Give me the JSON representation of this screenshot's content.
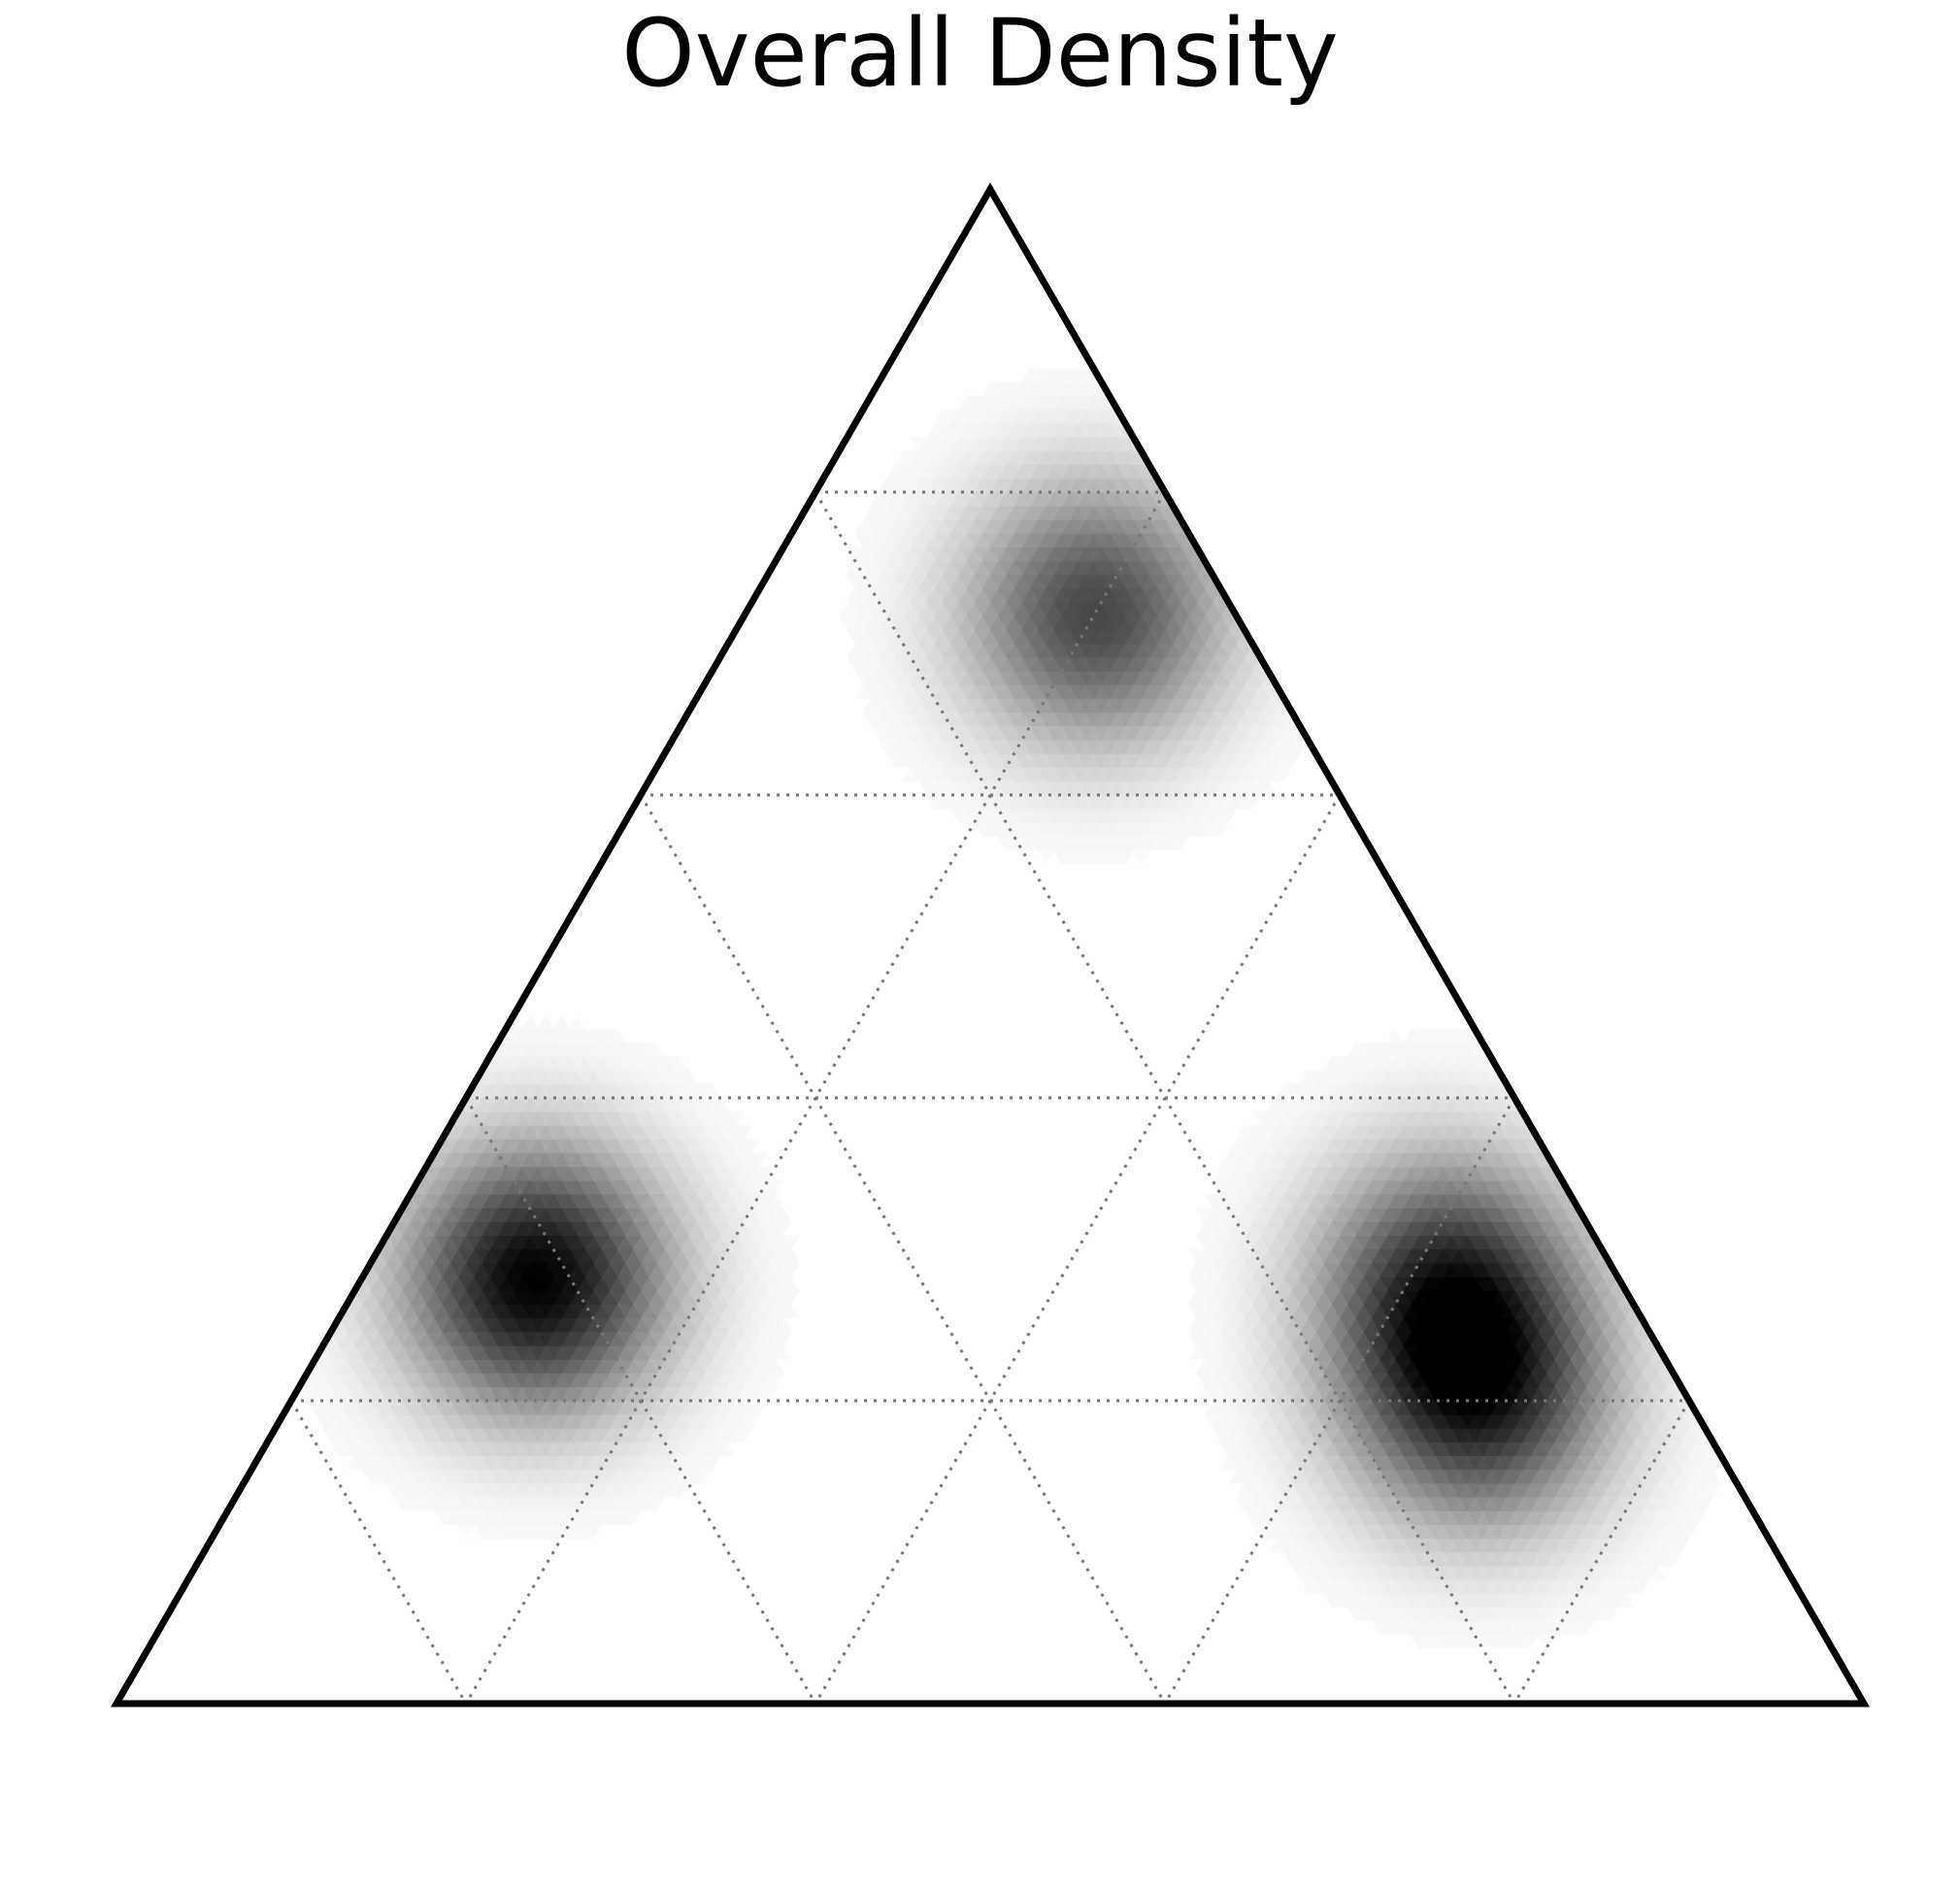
{
  "chart_data": {
    "type": "heatmap",
    "subtype": "ternary-density",
    "title": "Overall Density",
    "grid": "on",
    "gridlines_per_axis": [
      0.2,
      0.4,
      0.6,
      0.8
    ],
    "colormap": "white-to-black",
    "density_peaks": [
      {
        "a": 0.28,
        "b": 0.62,
        "c": 0.1,
        "intensity": 1.0
      },
      {
        "a": 0.72,
        "b": 0.08,
        "c": 0.2,
        "intensity": 0.72
      },
      {
        "a": 0.2,
        "b": 0.12,
        "c": 0.68,
        "intensity": 0.75
      },
      {
        "a": 0.28,
        "b": 0.1,
        "c": 0.62,
        "intensity": 0.7
      }
    ]
  }
}
